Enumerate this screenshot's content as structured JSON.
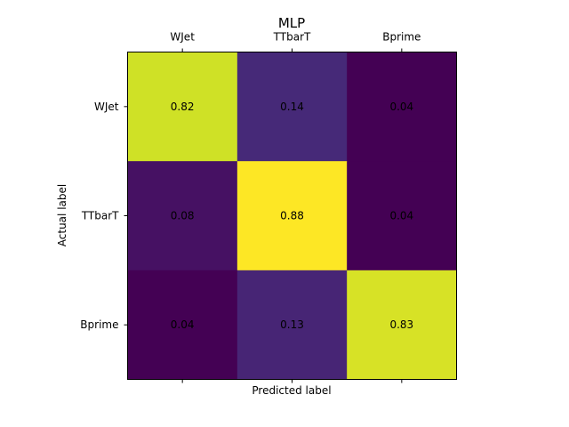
{
  "chart_data": {
    "type": "heatmap",
    "title": "MLP",
    "xlabel": "Predicted label",
    "ylabel": "Actual label",
    "x_categories": [
      "WJet",
      "TTbarT",
      "Bprime"
    ],
    "y_categories": [
      "WJet",
      "TTbarT",
      "Bprime"
    ],
    "values": [
      [
        0.82,
        0.14,
        0.04
      ],
      [
        0.08,
        0.88,
        0.04
      ],
      [
        0.04,
        0.13,
        0.83
      ]
    ],
    "value_labels": [
      [
        "0.82",
        "0.14",
        "0.04"
      ],
      [
        "0.08",
        "0.88",
        "0.04"
      ],
      [
        "0.04",
        "0.13",
        "0.83"
      ]
    ],
    "colormap": "viridis",
    "x_tick_position": "top",
    "grid": false
  }
}
